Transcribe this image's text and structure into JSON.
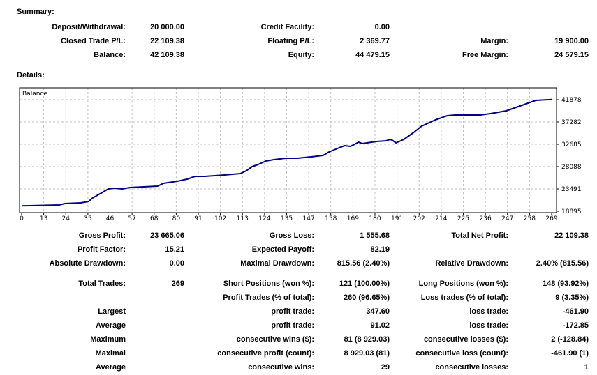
{
  "summary": {
    "title": "Summary:",
    "rows": [
      [
        "Deposit/Withdrawal:",
        "20 000.00",
        "Credit Facility:",
        "0.00",
        "",
        ""
      ],
      [
        "Closed Trade P/L:",
        "22 109.38",
        "Floating P/L:",
        "2 369.77",
        "Margin:",
        "19 900.00"
      ],
      [
        "Balance:",
        "42 109.38",
        "Equity:",
        "44 479.15",
        "Free Margin:",
        "24 579.15"
      ]
    ]
  },
  "details": {
    "title": "Details:",
    "rows": [
      [
        "Gross Profit:",
        "23 665.06",
        "Gross Loss:",
        "1 555.68",
        "Total Net Profit:",
        "22 109.38"
      ],
      [
        "Profit Factor:",
        "15.21",
        "Expected Payoff:",
        "82.19",
        "",
        ""
      ],
      [
        "Absolute Drawdown:",
        "0.00",
        "Maximal Drawdown:",
        "815.56 (2.40%)",
        "Relative Drawdown:",
        "2.40% (815.56)"
      ],
      [
        "Total Trades:",
        "269",
        "Short Positions (won %):",
        "121 (100.00%)",
        "Long Positions (won %):",
        "148 (93.92%)"
      ],
      [
        "",
        "",
        "Profit Trades (% of total):",
        "260 (96.65%)",
        "Loss trades (% of total):",
        "9 (3.35%)"
      ],
      [
        "Largest",
        "",
        "profit trade:",
        "347.60",
        "loss trade:",
        "-461.90"
      ],
      [
        "Average",
        "",
        "profit trade:",
        "91.02",
        "loss trade:",
        "-172.85"
      ],
      [
        "Maximum",
        "",
        "consecutive wins ($):",
        "81 (8 929.03)",
        "consecutive losses ($):",
        "2 (-128.84)"
      ],
      [
        "Maximal",
        "",
        "consecutive profit (count):",
        "8 929.03 (81)",
        "consecutive loss (count):",
        "-461.90 (1)"
      ],
      [
        "Average",
        "",
        "consecutive wins:",
        "29",
        "consecutive losses:",
        "1"
      ]
    ]
  },
  "chart_data": {
    "type": "line",
    "title": "Balance",
    "xlabel": "",
    "ylabel": "",
    "x_ticks": [
      "0",
      "13",
      "24",
      "35",
      "46",
      "57",
      "68",
      "80",
      "91",
      "102",
      "113",
      "124",
      "135",
      "147",
      "158",
      "169",
      "180",
      "191",
      "202",
      "214",
      "225",
      "236",
      "247",
      "258",
      "269"
    ],
    "y_ticks": [
      "41878",
      "37282",
      "32685",
      "28088",
      "23491",
      "18895"
    ],
    "xlim": [
      0,
      269
    ],
    "ylim": [
      18895,
      41878
    ],
    "grid": true,
    "line_color": "#000080",
    "series": [
      {
        "name": "Balance",
        "points": [
          [
            0,
            20000
          ],
          [
            4,
            20045
          ],
          [
            19,
            20190
          ],
          [
            22,
            20476
          ],
          [
            30,
            20619
          ],
          [
            34,
            20907
          ],
          [
            36,
            21625
          ],
          [
            41,
            22774
          ],
          [
            44,
            23492
          ],
          [
            47,
            23636
          ],
          [
            51,
            23492
          ],
          [
            55,
            23779
          ],
          [
            69,
            24067
          ],
          [
            72,
            24641
          ],
          [
            79,
            25072
          ],
          [
            84,
            25503
          ],
          [
            88,
            26078
          ],
          [
            93,
            26078
          ],
          [
            98,
            26221
          ],
          [
            103,
            26365
          ],
          [
            107,
            26509
          ],
          [
            111,
            26652
          ],
          [
            114,
            27227
          ],
          [
            117,
            28089
          ],
          [
            120,
            28519
          ],
          [
            124,
            29238
          ],
          [
            128,
            29525
          ],
          [
            134,
            29812
          ],
          [
            140,
            29812
          ],
          [
            147,
            30100
          ],
          [
            153,
            30387
          ],
          [
            156,
            31105
          ],
          [
            162,
            32110
          ],
          [
            164,
            32398
          ],
          [
            167,
            32254
          ],
          [
            171,
            33116
          ],
          [
            173,
            32829
          ],
          [
            180,
            33260
          ],
          [
            185,
            33403
          ],
          [
            187,
            33691
          ],
          [
            188,
            33547
          ],
          [
            190,
            32972
          ],
          [
            194,
            33691
          ],
          [
            199,
            35127
          ],
          [
            203,
            36420
          ],
          [
            210,
            37712
          ],
          [
            216,
            38574
          ],
          [
            220,
            38718
          ],
          [
            233,
            38718
          ],
          [
            238,
            39005
          ],
          [
            246,
            39580
          ],
          [
            253,
            40585
          ],
          [
            261,
            41734
          ],
          [
            269,
            41900
          ]
        ]
      }
    ]
  }
}
